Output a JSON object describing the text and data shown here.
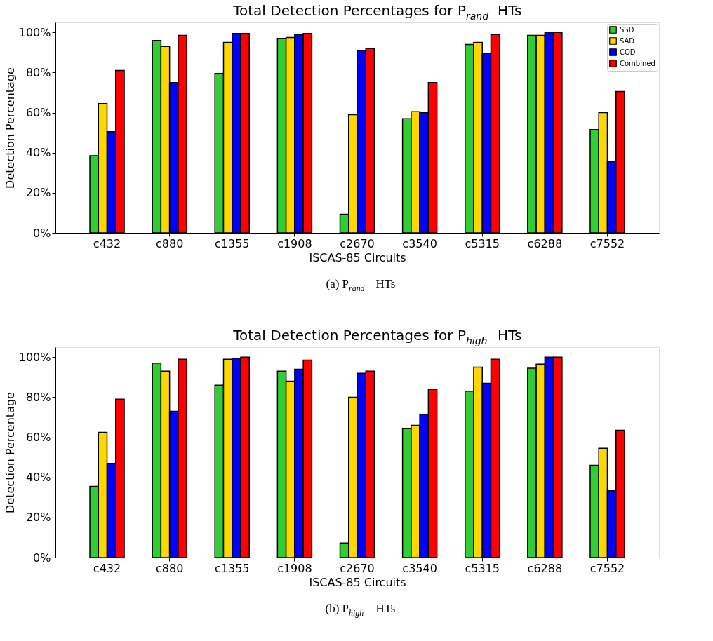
{
  "chart_data": [
    {
      "type": "bar",
      "title": "Total Detection Percentages for P$_{rand}$ HTs",
      "xlabel": "ISCAS-85 Circuits",
      "ylabel": "Detection Percentage",
      "annotations": [
        "(a) P$_{rand}$ HTs"
      ],
      "categories": [
        "c432",
        "c880",
        "c1355",
        "c1908",
        "c2670",
        "c3540",
        "c5315",
        "c6288",
        "c7552"
      ],
      "ylim": [
        0,
        105
      ],
      "yticks": [
        {
          "value": 0,
          "label": "0%"
        },
        {
          "value": 20,
          "label": "20%"
        },
        {
          "value": 40,
          "label": "40%"
        },
        {
          "value": 60,
          "label": "60%"
        },
        {
          "value": 80,
          "label": "80%"
        },
        {
          "value": 100,
          "label": "100%"
        }
      ],
      "grid": false,
      "legend": "top right",
      "series": [
        {
          "name": "SSD",
          "color": "#32cd32",
          "values": [
            38.5,
            96,
            79.5,
            97,
            9.3,
            57,
            94,
            98.5,
            51.5
          ]
        },
        {
          "name": "SAD",
          "color": "#ffd700",
          "values": [
            64.5,
            93,
            95,
            97.5,
            59,
            60.5,
            95,
            98.5,
            60
          ]
        },
        {
          "name": "COD",
          "color": "#0000ff",
          "values": [
            50.5,
            75,
            99.5,
            99,
            91,
            60,
            89.5,
            100,
            35.5
          ]
        },
        {
          "name": "Combined",
          "color": "#ff0000",
          "values": [
            81,
            98.5,
            99.5,
            99.5,
            92,
            75,
            99,
            100,
            70.5
          ]
        }
      ]
    },
    {
      "type": "bar",
      "title": "Total Detection Percentages for P$_{high}$ HTs",
      "xlabel": "ISCAS-85 Circuits",
      "ylabel": "Detection Percentage",
      "annotations": [
        "(b) P$_{high}$ HTs"
      ],
      "categories": [
        "c432",
        "c880",
        "c1355",
        "c1908",
        "c2670",
        "c3540",
        "c5315",
        "c6288",
        "c7552"
      ],
      "ylim": [
        0,
        105
      ],
      "yticks": [
        {
          "value": 0,
          "label": "0%"
        },
        {
          "value": 20,
          "label": "20%"
        },
        {
          "value": 40,
          "label": "40%"
        },
        {
          "value": 60,
          "label": "60%"
        },
        {
          "value": 80,
          "label": "80%"
        },
        {
          "value": 100,
          "label": "100%"
        }
      ],
      "grid": false,
      "legend": "top right",
      "series": [
        {
          "name": "SSD",
          "color": "#32cd32",
          "values": [
            35.5,
            97,
            86,
            93,
            7.3,
            64.5,
            83,
            94.5,
            46
          ]
        },
        {
          "name": "SAD",
          "color": "#ffd700",
          "values": [
            62.5,
            93,
            99,
            88,
            80,
            66,
            95,
            96.5,
            54.5
          ]
        },
        {
          "name": "COD",
          "color": "#0000ff",
          "values": [
            47,
            73,
            99.5,
            94,
            92,
            71.5,
            87,
            100,
            33.5
          ]
        },
        {
          "name": "Combined",
          "color": "#ff0000",
          "values": [
            79,
            99,
            100,
            98.5,
            93,
            84,
            99,
            100,
            63.5
          ]
        }
      ]
    }
  ]
}
